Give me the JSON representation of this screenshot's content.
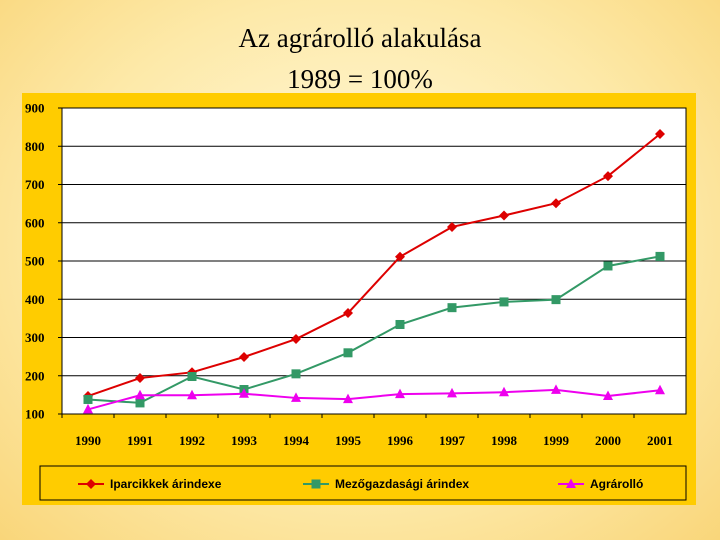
{
  "title_line1": "Az agrárolló alakulása",
  "title_line2": "1989 = 100%",
  "colors": {
    "panel": "#ffcc00",
    "plot_bg": "#ffffff",
    "grid": "#000000"
  },
  "chart_data": {
    "type": "line",
    "title": "Az agrárolló alakulása 1989 = 100%",
    "xlabel": "",
    "ylabel": "",
    "x": [
      "1990",
      "1991",
      "1992",
      "1993",
      "1994",
      "1995",
      "1996",
      "1997",
      "1998",
      "1999",
      "2000",
      "2001"
    ],
    "ylim": [
      100,
      900
    ],
    "yticks": [
      100,
      200,
      300,
      400,
      500,
      600,
      700,
      800,
      900
    ],
    "grid": true,
    "legend": "bottom",
    "series": [
      {
        "name": "Iparcikkek árindexe",
        "color": "#dd0000",
        "marker": "diamond",
        "values": [
          147,
          194,
          209,
          249,
          296,
          364,
          511,
          589,
          619,
          651,
          722,
          832
        ]
      },
      {
        "name": "Mezőgazdasági árindex",
        "color": "#339966",
        "marker": "square",
        "values": [
          138,
          129,
          198,
          164,
          205,
          260,
          334,
          378,
          393,
          399,
          487,
          512
        ]
      },
      {
        "name": "Agrárolló",
        "color": "#ee00ee",
        "marker": "triangle",
        "values": [
          112,
          149,
          149,
          153,
          142,
          139,
          152,
          154,
          157,
          163,
          147,
          162
        ]
      }
    ]
  }
}
